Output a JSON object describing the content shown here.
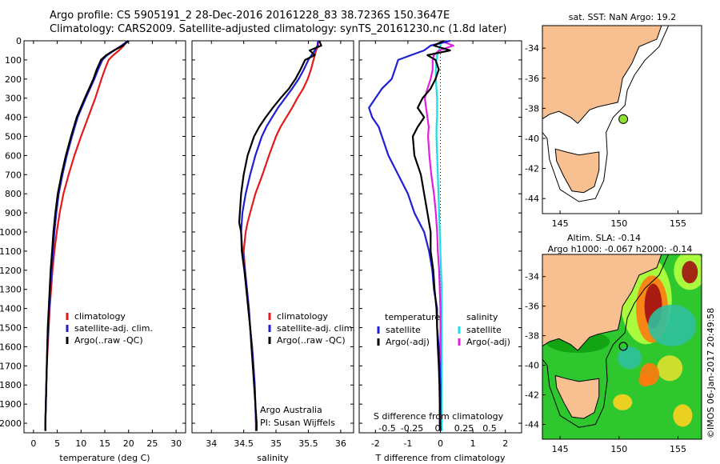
{
  "title_line1": "Argo profile: CS 5905191_2 28-Dec-2016 20161228_83 38.7236S 150.3647E",
  "title_line2": "Climatology: CARS2009. Satellite-adjusted climatology: synTS_20161230.nc (1.8d later)",
  "credit": "©IMOS 06-Jan-2017 20:49:58",
  "colors": {
    "climatology": "#e41a1c",
    "satellite": "#1f1fd6",
    "argo": "#000000",
    "sat_salinity": "#18e0e8",
    "argo_salinity": "#e020e0",
    "land": "#f8c090"
  },
  "chart_data": [
    {
      "type": "line",
      "xlabel": "temperature (deg C)",
      "xlim": [
        -2,
        32
      ],
      "xticks": [
        0,
        5,
        10,
        15,
        20,
        25,
        30
      ],
      "ylim": [
        0,
        2050
      ],
      "yticks": [
        0,
        100,
        200,
        300,
        400,
        500,
        600,
        700,
        800,
        900,
        1000,
        1100,
        1200,
        1300,
        1400,
        1500,
        1600,
        1700,
        1800,
        1900,
        2000
      ],
      "legend": [
        "climatology",
        "satellite-adj. clim.",
        "Argo(..raw -QC)"
      ],
      "depth": [
        0,
        25,
        50,
        75,
        100,
        150,
        200,
        300,
        400,
        500,
        600,
        700,
        800,
        900,
        1000,
        1100,
        1200,
        1300,
        1400,
        1500,
        1600,
        1700,
        1800,
        1900,
        2000,
        2040
      ],
      "series": [
        {
          "name": "climatology",
          "values": [
            19.6,
            19.0,
            18.0,
            16.8,
            15.8,
            15.0,
            14.3,
            13.0,
            11.5,
            10.0,
            8.6,
            7.4,
            6.3,
            5.5,
            4.9,
            4.4,
            4.0,
            3.7,
            3.4,
            3.2,
            3.0,
            2.8,
            2.7,
            2.6,
            2.5,
            2.5
          ]
        },
        {
          "name": "satellite-adj. clim.",
          "values": [
            19.9,
            18.5,
            17.0,
            15.5,
            14.5,
            13.6,
            12.8,
            11.0,
            9.3,
            8.1,
            7.0,
            6.1,
            5.3,
            4.8,
            4.4,
            4.1,
            3.8,
            3.5,
            3.3,
            3.1,
            2.9,
            2.8,
            2.7,
            2.6,
            2.5,
            2.5
          ]
        },
        {
          "name": "Argo(..raw -QC)",
          "values": [
            20.0,
            18.8,
            16.9,
            15.3,
            14.2,
            13.3,
            12.6,
            10.8,
            9.1,
            7.9,
            6.8,
            5.9,
            5.1,
            4.6,
            4.2,
            3.9,
            3.6,
            3.4,
            3.2,
            3.0,
            2.9,
            2.8,
            2.7,
            2.6,
            2.5,
            2.5
          ]
        }
      ]
    },
    {
      "type": "line",
      "xlabel": "salinity",
      "xlim": [
        33.7,
        36.2
      ],
      "xticks": [
        34,
        34.5,
        35,
        35.5,
        36
      ],
      "ylim": [
        0,
        2050
      ],
      "legend": [
        "climatology",
        "satellite-adj. clim.",
        "Argo(..raw -QC)"
      ],
      "annotation": [
        "Argo Australia",
        "PI: Susan Wijffels"
      ],
      "depth": [
        0,
        25,
        50,
        75,
        100,
        150,
        200,
        250,
        300,
        350,
        400,
        450,
        500,
        600,
        700,
        800,
        900,
        950,
        1000,
        1100,
        1200,
        1300,
        1400,
        1500,
        1600,
        1700,
        1800,
        1900,
        2000,
        2040
      ],
      "series": [
        {
          "name": "climatology",
          "values": [
            35.65,
            35.65,
            35.62,
            35.6,
            35.58,
            35.54,
            35.49,
            35.42,
            35.33,
            35.25,
            35.16,
            35.07,
            35.0,
            34.89,
            34.79,
            34.68,
            34.6,
            34.56,
            34.53,
            34.5,
            34.52,
            34.55,
            34.58,
            34.6,
            34.63,
            34.65,
            34.67,
            34.68,
            34.69,
            34.69
          ]
        },
        {
          "name": "satellite-adj. clim.",
          "values": [
            35.65,
            35.64,
            35.6,
            35.55,
            35.5,
            35.43,
            35.35,
            35.25,
            35.14,
            35.03,
            34.94,
            34.85,
            34.78,
            34.68,
            34.6,
            34.53,
            34.48,
            34.47,
            34.46,
            34.48,
            34.52,
            34.55,
            34.58,
            34.6,
            34.63,
            34.65,
            34.67,
            34.68,
            34.69,
            34.69
          ]
        },
        {
          "name": "Argo(..raw -QC)",
          "values": [
            35.67,
            35.7,
            35.52,
            35.6,
            35.45,
            35.38,
            35.3,
            35.2,
            35.07,
            34.95,
            34.84,
            34.74,
            34.66,
            34.56,
            34.5,
            34.46,
            34.44,
            34.43,
            34.46,
            34.47,
            34.51,
            34.54,
            34.57,
            34.6,
            34.62,
            34.64,
            34.66,
            34.68,
            34.7,
            34.7
          ]
        }
      ]
    },
    {
      "type": "line",
      "xlabel": "T difference from climatology",
      "xlim": [
        -2.5,
        2.5
      ],
      "xticks": [
        -2,
        -1,
        0,
        1,
        2
      ],
      "xlabel_top": "S difference from climatology",
      "sticks": [
        "-0.5",
        "-0.25",
        "0",
        "0.25",
        "0.5"
      ],
      "ylim": [
        0,
        2050
      ],
      "legend_temperature_title": "temperature",
      "legend_salinity_title": "salinity",
      "legend": [
        "satellite",
        "Argo(-adj)",
        "satellite",
        "Argo(-adj)"
      ],
      "depth": [
        0,
        25,
        50,
        75,
        100,
        150,
        200,
        250,
        300,
        350,
        400,
        450,
        500,
        600,
        700,
        800,
        900,
        1000,
        1100,
        1200,
        1300,
        1400,
        1500,
        1600,
        1700,
        1800,
        1900,
        2000,
        2040
      ],
      "series": [
        {
          "name": "temperature satellite",
          "values": [
            0.3,
            -0.3,
            -0.5,
            -0.9,
            -1.3,
            -1.4,
            -1.5,
            -1.8,
            -2.0,
            -2.2,
            -2.1,
            -1.9,
            -1.8,
            -1.6,
            -1.3,
            -1.0,
            -0.8,
            -0.5,
            -0.35,
            -0.25,
            -0.2,
            -0.1,
            -0.1,
            -0.05,
            -0.02,
            0.0,
            0.0,
            0.0,
            0.0
          ]
        },
        {
          "name": "temperature Argo(-adj)",
          "values": [
            0.1,
            -0.2,
            0.3,
            -0.4,
            -0.15,
            -0.05,
            -0.15,
            -0.3,
            -0.55,
            -0.7,
            -0.5,
            -0.7,
            -0.85,
            -0.8,
            -0.6,
            -0.5,
            -0.4,
            -0.3,
            -0.3,
            -0.22,
            -0.18,
            -0.12,
            -0.1,
            -0.08,
            -0.05,
            -0.03,
            -0.02,
            -0.02,
            0.0
          ]
        },
        {
          "name": "salinity satellite",
          "values": [
            0.0,
            0.0,
            -0.02,
            -0.05,
            -0.06,
            -0.07,
            -0.07,
            -0.06,
            -0.05,
            -0.05,
            -0.05,
            -0.06,
            -0.06,
            -0.05,
            -0.04,
            -0.03,
            -0.02,
            -0.01,
            0.0,
            0.01,
            0.02,
            0.02,
            0.02,
            0.02,
            0.02,
            0.02,
            0.02,
            0.02,
            0.02
          ]
        },
        {
          "name": "salinity Argo(-adj)",
          "values": [
            0.0,
            0.2,
            -0.02,
            -0.1,
            -0.12,
            -0.12,
            -0.15,
            -0.2,
            -0.24,
            -0.22,
            -0.2,
            -0.18,
            -0.19,
            -0.17,
            -0.14,
            -0.1,
            -0.07,
            -0.05,
            -0.04,
            -0.02,
            -0.01,
            0.0,
            0.0,
            0.0,
            0.0,
            0.0,
            0.0,
            0.0,
            0.0
          ]
        }
      ]
    },
    {
      "type": "scatter",
      "title": "sat. SST: NaN Argo: 19.2",
      "xlim": [
        143.5,
        157
      ],
      "ylim": [
        -45,
        -32.5
      ],
      "xticks": [
        145,
        150,
        155
      ],
      "yticks": [
        -34,
        -36,
        -38,
        -40,
        -42,
        -44
      ],
      "point": {
        "x": 150.36,
        "y": -38.72
      }
    },
    {
      "type": "heatmap",
      "title_line1": "Altim. SLA: -0.14",
      "title_line2": "Argo h1000: -0.067 h2000: -0.14",
      "xlim": [
        143.5,
        157
      ],
      "ylim": [
        -45,
        -32.5
      ],
      "xticks": [
        145,
        150,
        155
      ],
      "yticks": [
        -34,
        -36,
        -38,
        -40,
        -42,
        -44
      ],
      "point": {
        "x": 150.36,
        "y": -38.72
      }
    }
  ]
}
